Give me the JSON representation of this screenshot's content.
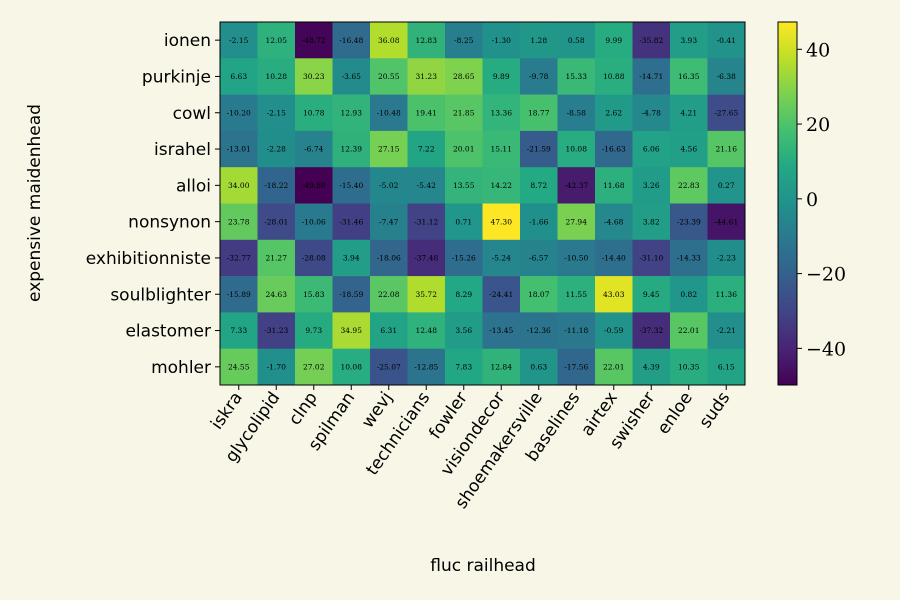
{
  "chart_data": {
    "type": "heatmap",
    "title": "",
    "xlabel": "fluc railhead",
    "ylabel": "expensive maidenhead",
    "x_categories": [
      "iskra",
      "glycolipid",
      "clnp",
      "spilman",
      "wevj",
      "technicians",
      "fowler",
      "visiondecor",
      "shoemakersville",
      "baselines",
      "airtex",
      "swisher",
      "enloe",
      "suds"
    ],
    "y_categories": [
      "ionen",
      "purkinje",
      "cowl",
      "israhel",
      "alloi",
      "nonsynon",
      "exhibitionniste",
      "soulblighter",
      "elastomer",
      "mohler"
    ],
    "values": [
      [
        -2.15,
        12.05,
        -48.72,
        -16.48,
        36.08,
        12.83,
        -8.25,
        -1.3,
        1.28,
        0.58,
        9.99,
        -35.82,
        3.93,
        -0.41
      ],
      [
        6.63,
        10.28,
        30.23,
        -3.65,
        20.55,
        31.23,
        28.65,
        9.89,
        -9.78,
        15.33,
        10.88,
        -14.71,
        16.35,
        -6.38
      ],
      [
        -10.2,
        -2.15,
        10.78,
        12.93,
        -10.48,
        19.41,
        21.85,
        13.36,
        18.77,
        -8.58,
        2.62,
        -4.78,
        4.21,
        -27.65
      ],
      [
        -13.01,
        -2.28,
        -6.74,
        12.39,
        27.15,
        7.22,
        20.01,
        15.11,
        -21.59,
        10.08,
        -16.63,
        6.06,
        4.56,
        21.16
      ],
      [
        34.0,
        -18.22,
        -49.8,
        -15.4,
        -5.02,
        -5.42,
        13.55,
        14.22,
        8.72,
        -42.37,
        11.68,
        3.26,
        22.83,
        0.27
      ],
      [
        23.78,
        -28.01,
        -10.06,
        -31.46,
        -7.47,
        -31.12,
        0.71,
        47.3,
        -1.66,
        27.94,
        -4.68,
        3.82,
        -23.39,
        -44.61
      ],
      [
        -32.77,
        21.27,
        -28.08,
        3.94,
        -18.06,
        -37.48,
        -15.26,
        -5.24,
        -6.57,
        -10.5,
        -14.4,
        -31.1,
        -14.33,
        -2.23
      ],
      [
        -15.89,
        24.63,
        15.83,
        -18.59,
        22.08,
        35.72,
        8.29,
        -24.41,
        18.07,
        11.55,
        43.03,
        9.45,
        0.82,
        11.36
      ],
      [
        7.33,
        -31.23,
        9.73,
        34.95,
        6.31,
        12.48,
        3.56,
        -13.45,
        -12.36,
        -11.18,
        -0.59,
        -37.32,
        22.01,
        -2.21
      ],
      [
        24.55,
        -1.7,
        27.02,
        10.08,
        -25.07,
        -12.85,
        7.83,
        12.84,
        0.63,
        -17.56,
        22.01,
        4.39,
        10.35,
        6.15
      ]
    ],
    "value_labels": [
      [
        "-2.15",
        "12.05",
        "-48.72",
        "-16.48",
        "36.08",
        "12.83",
        "-8.25",
        "-1.30",
        "1.28",
        "0.58",
        "9.99",
        "-35.82",
        "3.93",
        "-0.41"
      ],
      [
        "6.63",
        "10.28",
        "30.23",
        "-3.65",
        "20.55",
        "31.23",
        "28.65",
        "9.89",
        "-9.78",
        "15.33",
        "10.88",
        "-14.71",
        "16.35",
        "-6.38"
      ],
      [
        "-10.20",
        "-2.15",
        "10.78",
        "12.93",
        "-10.48",
        "19.41",
        "21.85",
        "13.36",
        "18.77",
        "-8.58",
        "2.62",
        "-4.78",
        "4.21",
        "-27.65"
      ],
      [
        "-13.01",
        "-2.28",
        "-6.74",
        "12.39",
        "27.15",
        "7.22",
        "20.01",
        "15.11",
        "-21.59",
        "10.08",
        "-16.63",
        "6.06",
        "4.56",
        "21.16"
      ],
      [
        "34.00",
        "-18.22",
        "-49.80",
        "-15.40",
        "-5.02",
        "-5.42",
        "13.55",
        "14.22",
        "8.72",
        "-42.37",
        "11.68",
        "3.26",
        "22.83",
        "0.27"
      ],
      [
        "23.78",
        "-28.01",
        "-10.06",
        "-31.46",
        "-7.47",
        "-31.12",
        "0.71",
        "47.30",
        "-1.66",
        "27.94",
        "-4.68",
        "3.82",
        "-23.39",
        "-44.61"
      ],
      [
        "-32.77",
        "21.27",
        "-28.08",
        "3.94",
        "-18.06",
        "-37.48",
        "-15.26",
        "-5.24",
        "-6.57",
        "-10.50",
        "-14.40",
        "-31.10",
        "-14.33",
        "-2.23"
      ],
      [
        "-15.89",
        "24.63",
        "15.83",
        "-18.59",
        "22.08",
        "35.72",
        "8.29",
        "-24.41",
        "18.07",
        "11.55",
        "43.03",
        "9.45",
        "0.82",
        "11.36"
      ],
      [
        "7.33",
        "-31.23",
        "9.73",
        "34.95",
        "6.31",
        "12.48",
        "3.56",
        "-13.45",
        "-12.36",
        "-11.18",
        "-0.59",
        "-37.32",
        "22.01",
        "-2.21"
      ],
      [
        "24.55",
        "-1.70",
        "27.02",
        "10.08",
        "-25.07",
        "-12.85",
        "7.83",
        "12.84",
        "0.63",
        "-17.56",
        "22.01",
        "4.39",
        "10.35",
        "6.15"
      ]
    ],
    "colorbar": {
      "colormap": "viridis",
      "vmin": -49.8,
      "vmax": 47.3,
      "ticks": [
        -40,
        -20,
        0,
        20,
        40
      ],
      "tick_labels": [
        "−40",
        "−20",
        "0",
        "20",
        "40"
      ],
      "placement": "right"
    },
    "grid": false,
    "background_color": "#f8f6e6"
  }
}
